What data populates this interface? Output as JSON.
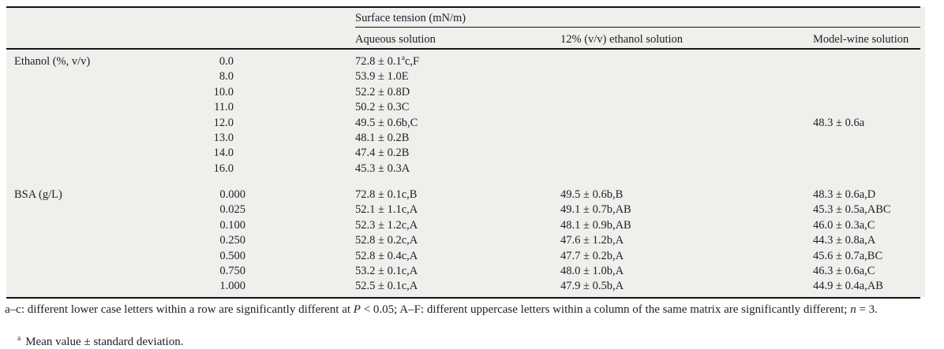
{
  "table": {
    "span_header": "Surface tension (mN/m)",
    "columns": {
      "aqueous": "Aqueous solution",
      "ethanol12": "12% (v/v) ethanol solution",
      "model_wine": "Model-wine solution"
    },
    "sections": [
      {
        "label": "Ethanol (%, v/v)",
        "rows": [
          {
            "conc": "0.0",
            "aqueous_value": "72.8 ± 0.1",
            "aqueous_sup": "a",
            "aqueous_letters": "c,F"
          },
          {
            "conc": "8.0",
            "aqueous": "53.9 ± 1.0E"
          },
          {
            "conc": "10.0",
            "aqueous": "52.2 ± 0.8D"
          },
          {
            "conc": "11.0",
            "aqueous": "50.2 ± 0.3C"
          },
          {
            "conc": "12.0",
            "aqueous": "49.5 ± 0.6b,C",
            "model_wine": "48.3 ± 0.6a"
          },
          {
            "conc": "13.0",
            "aqueous": "48.1 ± 0.2B"
          },
          {
            "conc": "14.0",
            "aqueous": "47.4 ± 0.2B"
          },
          {
            "conc": "16.0",
            "aqueous": "45.3 ± 0.3A"
          }
        ]
      },
      {
        "label": "BSA (g/L)",
        "rows": [
          {
            "conc": "0.000",
            "aqueous": "72.8 ± 0.1c,B",
            "ethanol12": "49.5 ± 0.6b,B",
            "model_wine": "48.3 ± 0.6a,D"
          },
          {
            "conc": "0.025",
            "aqueous": "52.1 ± 1.1c,A",
            "ethanol12": "49.1 ± 0.7b,AB",
            "model_wine": "45.3 ± 0.5a,ABC"
          },
          {
            "conc": "0.100",
            "aqueous": "52.3 ± 1.2c,A",
            "ethanol12": "48.1 ± 0.9b,AB",
            "model_wine": "46.0 ± 0.3a,C"
          },
          {
            "conc": "0.250",
            "aqueous": "52.8 ± 0.2c,A",
            "ethanol12": "47.6 ± 1.2b,A",
            "model_wine": "44.3 ± 0.8a,A"
          },
          {
            "conc": "0.500",
            "aqueous": "52.8 ± 0.4c,A",
            "ethanol12": "47.7 ± 0.2b,A",
            "model_wine": "45.6 ± 0.7a,BC"
          },
          {
            "conc": "0.750",
            "aqueous": "53.2 ± 0.1c,A",
            "ethanol12": "48.0 ± 1.0b,A",
            "model_wine": "46.3 ± 0.6a,C"
          },
          {
            "conc": "1.000",
            "aqueous": "52.5 ± 0.1c,A",
            "ethanol12": "47.9 ± 0.5b,A",
            "model_wine": "44.9 ± 0.4a,AB"
          }
        ]
      }
    ]
  },
  "footnotes": {
    "legend": {
      "pre": "a–c: different lower case letters within a row are significantly different at ",
      "p_italic": "P",
      "mid": " < 0.05; A–F: different uppercase letters within a column of the same matrix are significantly different; ",
      "n_italic": "n",
      "end": " = 3."
    },
    "mean": {
      "marker": "a",
      "text": "Mean value ± standard deviation."
    }
  },
  "colors": {
    "table_background": "#efefec",
    "text": "#20202b",
    "rule": "#141418"
  }
}
